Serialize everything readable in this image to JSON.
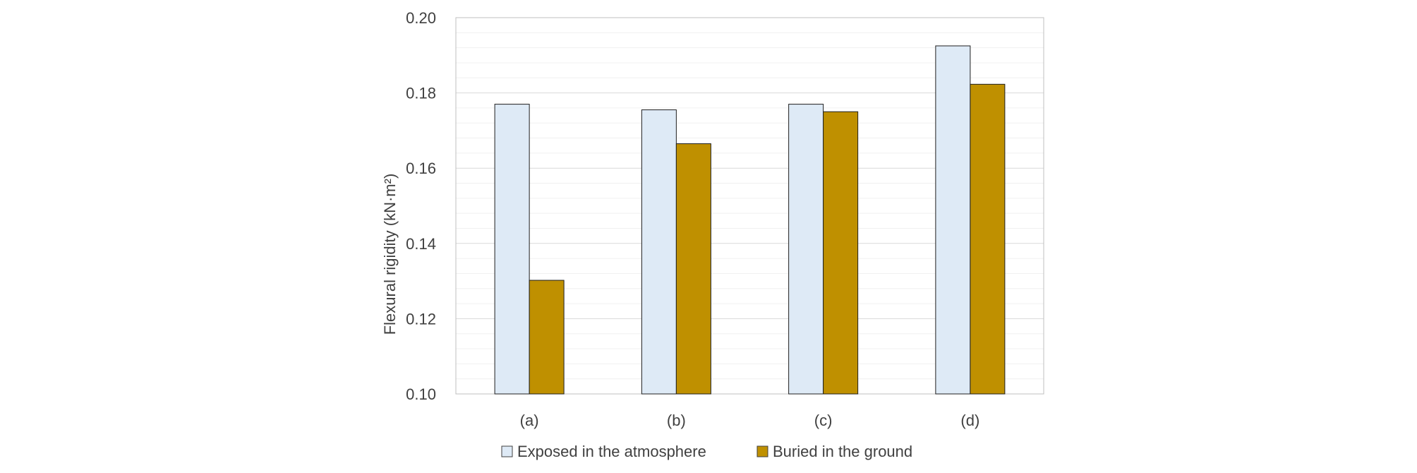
{
  "chart_data": {
    "type": "bar",
    "categories": [
      "(a)",
      "(b)",
      "(c)",
      "(d)"
    ],
    "series": [
      {
        "name": "Exposed in the atmosphere",
        "color": "#DEEAF6",
        "values": [
          0.177,
          0.1755,
          0.177,
          0.1925
        ]
      },
      {
        "name": "Buried in the ground",
        "color": "#BF9000",
        "values": [
          0.1302,
          0.1665,
          0.175,
          0.1823
        ]
      }
    ],
    "title": "",
    "xlabel": "",
    "ylabel": "Flexural rigidity (kN·m²)",
    "ylim": [
      0.1,
      0.2
    ],
    "yticks": [
      "0.10",
      "0.12",
      "0.14",
      "0.16",
      "0.18",
      "0.20"
    ],
    "grid": "major and minor horizontal",
    "legend": "bottom"
  }
}
